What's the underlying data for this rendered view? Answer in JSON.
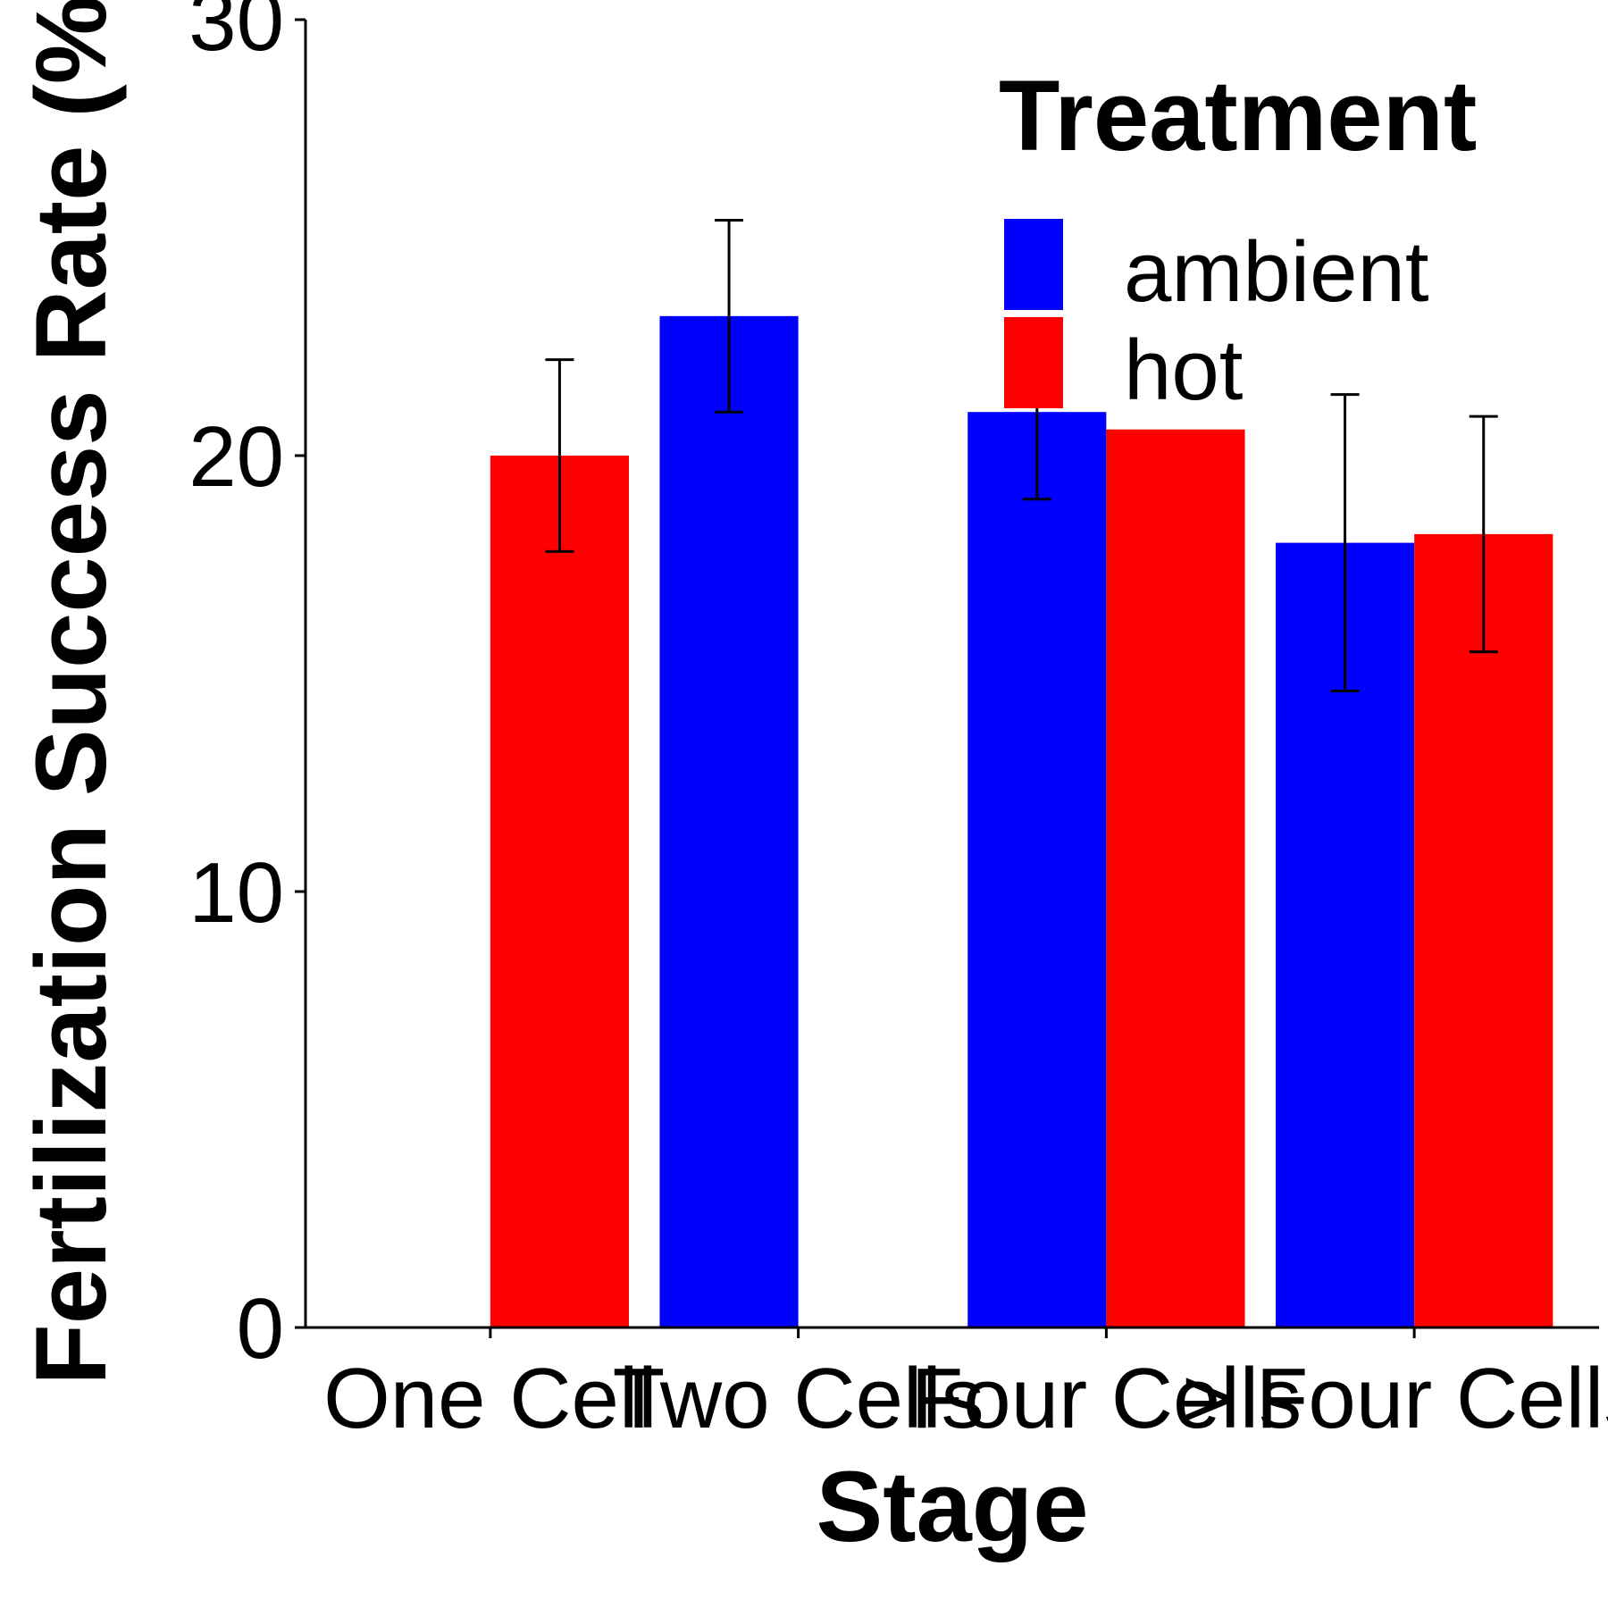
{
  "chart_data": {
    "type": "bar",
    "title": "",
    "xlabel": "Stage",
    "ylabel": "Fertilization Success Rate (%)",
    "categories": [
      "One Cell",
      "Two Cells",
      "Four Cells",
      "> Four Cells"
    ],
    "ylim": [
      0,
      30
    ],
    "yticks": [
      0,
      10,
      20,
      30
    ],
    "legend": {
      "title": "Treatment",
      "position": "top-right"
    },
    "series": [
      {
        "name": "ambient",
        "color": "#0000FF",
        "values": [
          null,
          23.2,
          21.0,
          18.0
        ],
        "error": [
          null,
          2.2,
          2.0,
          3.4
        ]
      },
      {
        "name": "hot",
        "color": "#FF0000",
        "values": [
          20.0,
          null,
          20.6,
          18.2
        ],
        "error": [
          2.2,
          null,
          null,
          2.7
        ]
      }
    ]
  }
}
